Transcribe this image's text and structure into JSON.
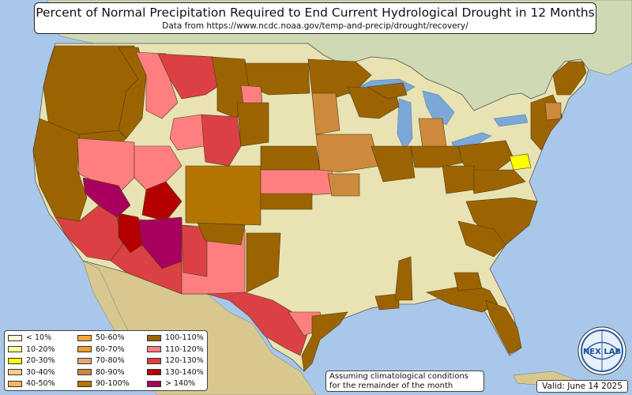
{
  "title": "Percent of Normal Precipitation Required to End Current Hydrological Drought in 12 Months",
  "subtitle": "Data from https://www.ncdc.noaa.gov/temp-and-precip/drought/recovery/",
  "legend": [
    {
      "label": "< 10%",
      "color": "#ffffd9"
    },
    {
      "label": "10-20%",
      "color": "#ffff9a"
    },
    {
      "label": "20-30%",
      "color": "#ffff00"
    },
    {
      "label": "30-40%",
      "color": "#fdcc8a"
    },
    {
      "label": "40-50%",
      "color": "#fdb45a"
    },
    {
      "label": "50-60%",
      "color": "#f9a640"
    },
    {
      "label": "60-70%",
      "color": "#f39a30"
    },
    {
      "label": "70-80%",
      "color": "#e3a878"
    },
    {
      "label": "80-90%",
      "color": "#cd8a3c"
    },
    {
      "label": "90-100%",
      "color": "#b47500"
    },
    {
      "label": "100-110%",
      "color": "#9c6400"
    },
    {
      "label": "110-120%",
      "color": "#ff7f80"
    },
    {
      "label": "120-130%",
      "color": "#db4144"
    },
    {
      "label": "130-140%",
      "color": "#b40000"
    },
    {
      "label": "> 140%",
      "color": "#a8005f"
    }
  ],
  "note": {
    "line1": "Assuming climatological conditions",
    "line2": "for the remainder of the month"
  },
  "valid": "Valid: June 14 2025",
  "logo": {
    "text": "NEX LAB",
    "icon": "globe-logo-icon"
  },
  "colors": {
    "ocean": "#a9c7e8",
    "land": "#e9e3b4",
    "land_south": "#d9c99a",
    "mexico": "#d8c890",
    "canada": "#cfd9b4",
    "lakes": "#7aa8d8"
  }
}
